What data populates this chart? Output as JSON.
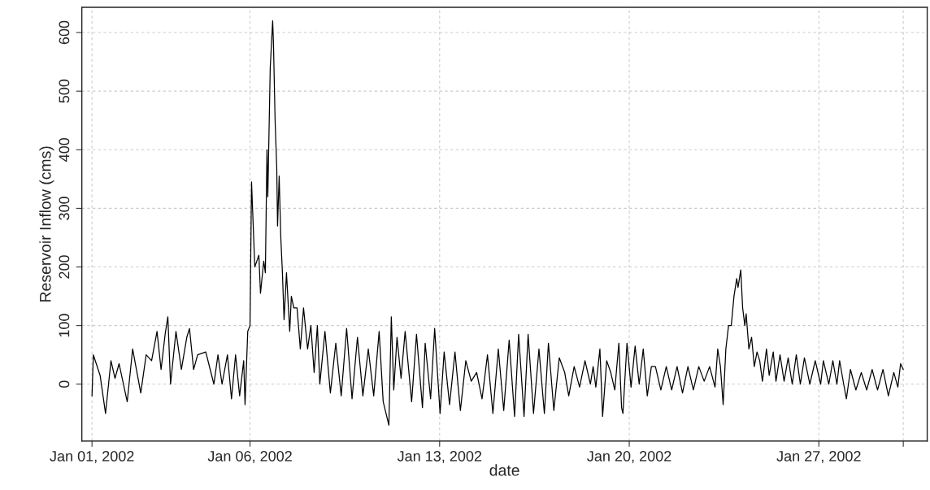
{
  "chart_data": {
    "type": "line",
    "xlabel": "date",
    "ylabel": "Reservoir Inflow (cms)",
    "xlim": [
      "2001-12-31T15:00",
      "2002-01-31T20:00"
    ],
    "ylim": [
      -97,
      643
    ],
    "xticks": [
      {
        "value": "2002-01-01T00:00",
        "label": "Jan 01, 2002"
      },
      {
        "value": "2002-01-06T20:00",
        "label": "Jan 06, 2002"
      },
      {
        "value": "2002-01-13T20:00",
        "label": "Jan 13, 2002"
      },
      {
        "value": "2002-01-20T20:00",
        "label": "Jan 20, 2002"
      },
      {
        "value": "2002-01-27T20:00",
        "label": "Jan 27, 2002"
      },
      {
        "value": "2002-01-30T22:48",
        "label": null
      }
    ],
    "yticks": [
      0,
      100,
      200,
      300,
      400,
      500,
      600
    ],
    "grid": true,
    "line_style": "solid",
    "marker": "none",
    "series": [
      {
        "color": "#000000",
        "x": [
          "2002-01-01T00:00",
          "2002-01-01T01:12",
          "2002-01-01T07:12",
          "2002-01-01T12:00",
          "2002-01-01T16:48",
          "2002-01-01T20:24",
          "2002-01-02T00:00",
          "2002-01-02T07:12",
          "2002-01-02T12:00",
          "2002-01-02T19:12",
          "2002-01-03T00:00",
          "2002-01-03T04:48",
          "2002-01-03T09:36",
          "2002-01-03T13:12",
          "2002-01-03T16:48",
          "2002-01-03T19:12",
          "2002-01-03T21:36",
          "2002-01-04T02:24",
          "2002-01-04T07:12",
          "2002-01-04T12:00",
          "2002-01-04T14:24",
          "2002-01-04T18:00",
          "2002-01-04T21:36",
          "2002-01-05T04:48",
          "2002-01-05T12:00",
          "2002-01-05T15:36",
          "2002-01-05T19:12",
          "2002-01-06T00:00",
          "2002-01-06T03:36",
          "2002-01-06T07:12",
          "2002-01-06T10:48",
          "2002-01-06T14:24",
          "2002-01-06T15:36",
          "2002-01-06T18:00",
          "2002-01-06T20:00",
          "2002-01-06T21:22",
          "2002-01-07T00:14",
          "2002-01-07T03:50",
          "2002-01-07T05:17",
          "2002-01-07T08:10",
          "2002-01-07T09:36",
          "2002-01-07T11:02",
          "2002-01-07T11:46",
          "2002-01-07T13:55",
          "2002-01-07T16:05",
          "2002-01-07T16:48",
          "2002-01-07T18:14",
          "2002-01-07T19:41",
          "2002-01-07T20:24",
          "2002-01-07T21:50",
          "2002-01-07T23:17",
          "2002-01-08T00:43",
          "2002-01-08T02:10",
          "2002-01-08T04:19",
          "2002-01-08T07:12",
          "2002-01-08T08:38",
          "2002-01-08T10:48",
          "2002-01-08T13:41",
          "2002-01-08T16:34",
          "2002-01-08T19:26",
          "2002-01-08T23:02",
          "2002-01-09T01:55",
          "2002-01-09T04:48",
          "2002-01-09T07:41",
          "2002-01-09T09:50",
          "2002-01-09T14:24",
          "2002-01-09T19:12",
          "2002-01-10T00:00",
          "2002-01-10T04:48",
          "2002-01-10T09:36",
          "2002-01-10T14:24",
          "2002-01-10T19:12",
          "2002-01-11T00:00",
          "2002-01-11T04:48",
          "2002-01-11T09:36",
          "2002-01-11T14:24",
          "2002-01-11T18:00",
          "2002-01-11T23:02",
          "2002-01-12T01:12",
          "2002-01-12T03:22",
          "2002-01-12T06:14",
          "2002-01-12T09:50",
          "2002-01-12T13:26",
          "2002-01-12T19:12",
          "2002-01-12T23:31",
          "2002-01-13T04:48",
          "2002-01-13T07:12",
          "2002-01-13T12:00",
          "2002-01-13T15:36",
          "2002-01-13T20:24",
          "2002-01-14T00:00",
          "2002-01-14T04:48",
          "2002-01-14T09:36",
          "2002-01-14T14:24",
          "2002-01-14T19:12",
          "2002-01-15T00:00",
          "2002-01-15T04:48",
          "2002-01-15T09:36",
          "2002-01-15T14:24",
          "2002-01-15T19:12",
          "2002-01-16T00:00",
          "2002-01-16T04:48",
          "2002-01-16T09:36",
          "2002-01-16T14:24",
          "2002-01-16T18:00",
          "2002-01-16T22:48",
          "2002-01-17T02:24",
          "2002-01-17T07:12",
          "2002-01-17T12:00",
          "2002-01-17T16:48",
          "2002-01-17T20:24",
          "2002-01-18T01:12",
          "2002-01-18T06:00",
          "2002-01-18T10:48",
          "2002-01-18T14:24",
          "2002-01-18T19:12",
          "2002-01-19T00:00",
          "2002-01-19T04:48",
          "2002-01-19T09:36",
          "2002-01-19T12:00",
          "2002-01-19T14:24",
          "2002-01-19T18:00",
          "2002-01-19T20:24",
          "2002-01-20T00:00",
          "2002-01-20T03:36",
          "2002-01-20T07:12",
          "2002-01-20T10:48",
          "2002-01-20T13:12",
          "2002-01-20T14:24",
          "2002-01-20T18:00",
          "2002-01-20T21:36",
          "2002-01-21T01:12",
          "2002-01-21T04:48",
          "2002-01-21T08:24",
          "2002-01-21T12:00",
          "2002-01-21T15:36",
          "2002-01-21T19:12",
          "2002-01-22T00:00",
          "2002-01-22T04:48",
          "2002-01-22T09:36",
          "2002-01-22T14:24",
          "2002-01-22T19:12",
          "2002-01-23T00:00",
          "2002-01-23T04:48",
          "2002-01-23T09:36",
          "2002-01-23T14:24",
          "2002-01-23T19:12",
          "2002-01-24T00:00",
          "2002-01-24T02:24",
          "2002-01-24T04:48",
          "2002-01-24T07:12",
          "2002-01-24T09:36",
          "2002-01-24T12:00",
          "2002-01-24T14:24",
          "2002-01-24T16:48",
          "2002-01-24T19:12",
          "2002-01-24T20:24",
          "2002-01-24T22:48",
          "2002-01-25T00:29",
          "2002-01-25T02:24",
          "2002-01-25T03:36",
          "2002-01-25T06:00",
          "2002-01-25T08:24",
          "2002-01-25T10:48",
          "2002-01-25T13:12",
          "2002-01-25T15:36",
          "2002-01-25T18:00",
          "2002-01-25T21:36",
          "2002-01-26T00:00",
          "2002-01-26T03:36",
          "2002-01-26T06:00",
          "2002-01-26T09:36",
          "2002-01-26T13:12",
          "2002-01-26T16:48",
          "2002-01-26T20:24",
          "2002-01-27T00:00",
          "2002-01-27T03:36",
          "2002-01-27T07:12",
          "2002-01-27T12:00",
          "2002-01-27T16:48",
          "2002-01-27T21:36",
          "2002-01-28T00:00",
          "2002-01-28T04:48",
          "2002-01-28T08:24",
          "2002-01-28T12:00",
          "2002-01-28T14:24",
          "2002-01-28T18:00",
          "2002-01-28T20:24",
          "2002-01-29T00:00",
          "2002-01-29T04:48",
          "2002-01-29T09:36",
          "2002-01-29T14:24",
          "2002-01-29T19:12",
          "2002-01-30T00:00",
          "2002-01-30T04:48",
          "2002-01-30T09:36",
          "2002-01-30T14:24",
          "2002-01-30T18:00",
          "2002-01-30T20:24",
          "2002-01-30T22:48"
        ],
        "values": [
          -20,
          50,
          15,
          -50,
          40,
          10,
          35,
          -30,
          60,
          -15,
          50,
          40,
          90,
          25,
          85,
          115,
          0,
          90,
          25,
          80,
          95,
          25,
          50,
          55,
          0,
          50,
          0,
          50,
          -25,
          50,
          -20,
          40,
          -35,
          90,
          100,
          345,
          200,
          220,
          155,
          210,
          190,
          400,
          320,
          540,
          620,
          580,
          450,
          370,
          270,
          355,
          250,
          190,
          110,
          190,
          90,
          150,
          130,
          130,
          60,
          130,
          60,
          100,
          20,
          100,
          0,
          90,
          -15,
          70,
          -20,
          95,
          -25,
          80,
          -20,
          60,
          -20,
          90,
          -30,
          -70,
          115,
          -10,
          80,
          10,
          90,
          -30,
          85,
          -40,
          70,
          -25,
          95,
          -50,
          55,
          -35,
          55,
          -45,
          40,
          5,
          20,
          -25,
          50,
          -50,
          60,
          -45,
          75,
          -55,
          85,
          -55,
          85,
          -50,
          60,
          -50,
          70,
          -45,
          45,
          20,
          -20,
          30,
          -5,
          40,
          0,
          30,
          -5,
          60,
          -55,
          40,
          20,
          -10,
          70,
          -40,
          -50,
          70,
          -5,
          65,
          0,
          60,
          -20,
          30,
          30,
          -10,
          30,
          -10,
          30,
          -15,
          30,
          -10,
          30,
          5,
          30,
          -5,
          60,
          30,
          -35,
          60,
          100,
          100,
          150,
          180,
          165,
          195,
          130,
          100,
          120,
          60,
          80,
          30,
          55,
          40,
          5,
          60,
          15,
          55,
          5,
          50,
          5,
          45,
          0,
          50,
          0,
          45,
          0,
          40,
          0,
          40,
          0,
          40,
          0,
          40,
          0,
          -25,
          25,
          -10,
          20,
          -10,
          25,
          -10,
          25,
          -20,
          20,
          -5,
          35,
          25
        ]
      }
    ]
  }
}
